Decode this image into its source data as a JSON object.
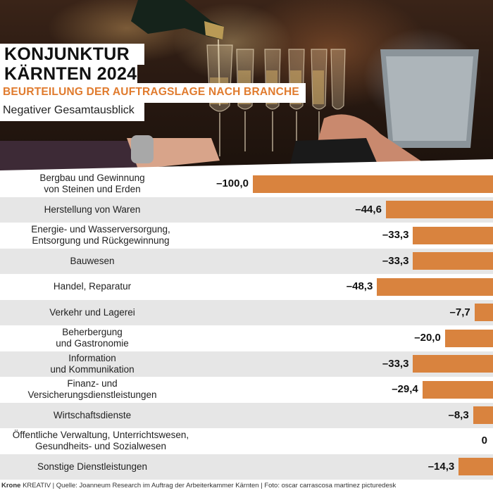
{
  "header": {
    "title_line1": "KONJUNKTUR",
    "title_line2": "KÄRNTEN 2024",
    "subtitle": "BEURTEILUNG DER AUFTRAGSLAGE NACH BRANCHE",
    "note": "Negativer Gesamtausblick"
  },
  "chart_data": {
    "type": "bar",
    "orientation": "horizontal",
    "bar_color": "#d9833e",
    "row_stripe_color": "#e6e6e6",
    "xlim": [
      -100,
      0
    ],
    "categories": [
      [
        "Bergbau und Gewinnung",
        "von Steinen und Erden"
      ],
      [
        "Herstellung von Waren"
      ],
      [
        "Energie- und Wasserversorgung,",
        "Entsorgung und Rückgewinnung"
      ],
      [
        "Bauwesen"
      ],
      [
        "Handel, Reparatur"
      ],
      [
        "Verkehr und Lagerei"
      ],
      [
        "Beherbergung",
        "und Gastronomie"
      ],
      [
        "Information",
        "und Kommunikation"
      ],
      [
        "Finanz- und",
        "Versicherungsdienstleistungen"
      ],
      [
        "Wirtschaftsdienste"
      ],
      [
        "Öffentliche Verwaltung, Unterrichtswesen,",
        "Gesundheits- und Sozialwesen"
      ],
      [
        "Sonstige Dienstleistungen"
      ]
    ],
    "values": [
      -100.0,
      -44.6,
      -33.3,
      -33.3,
      -48.3,
      -7.7,
      -20.0,
      -33.3,
      -29.4,
      -8.3,
      0,
      -14.3
    ],
    "value_labels": [
      "–100,0",
      "–44,6",
      "–33,3",
      "–33,3",
      "–48,3",
      "–7,7",
      "–20,0",
      "–33,3",
      "–29,4",
      "–8,3",
      "0",
      "–14,3"
    ]
  },
  "footer": {
    "brand_bold": "Krone",
    "brand_rest": " KREATIV",
    "source": " | Quelle: Joanneum Research im Auftrag der Arbeiterkammer Kärnten | Foto: oscar carrascosa martinez picturedesk"
  }
}
